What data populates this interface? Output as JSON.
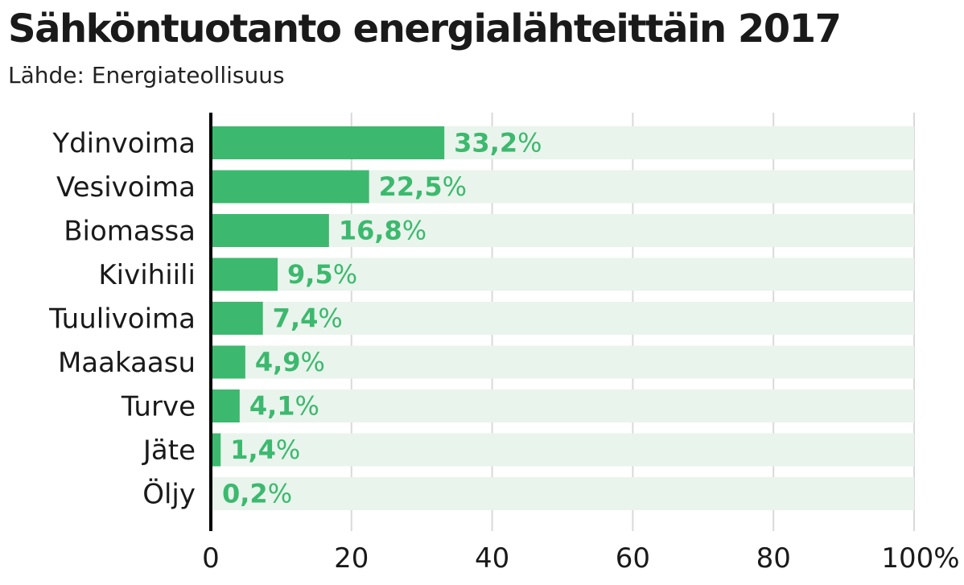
{
  "chart_data": {
    "type": "bar",
    "orientation": "horizontal",
    "title": "Sähköntuotanto energialähteittäin 2017",
    "subtitle": "Lähde: Energiateollisuus",
    "categories": [
      "Ydinvoima",
      "Vesivoima",
      "Biomassa",
      "Kivihiili",
      "Tuulivoima",
      "Maakaasu",
      "Turve",
      "Jäte",
      "Öljy"
    ],
    "values": [
      33.2,
      22.5,
      16.8,
      9.5,
      7.4,
      4.9,
      4.1,
      1.4,
      0.2
    ],
    "value_labels": [
      "33,2",
      "22,5",
      "16,8",
      "9,5",
      "7,4",
      "4,9",
      "4,1",
      "1,4",
      "0,2"
    ],
    "value_unit": "%",
    "xlim": [
      0,
      100
    ],
    "xticks": [
      0,
      20,
      40,
      60,
      80,
      100
    ],
    "xtick_labels": [
      "0",
      "20",
      "40",
      "60",
      "80",
      "100%"
    ],
    "grid": true,
    "colors": {
      "bar": "#3cb96e",
      "track": "#e9f4ec",
      "label": "#3cb96e",
      "grid": "#d9d9d9",
      "axis": "#000000"
    }
  }
}
